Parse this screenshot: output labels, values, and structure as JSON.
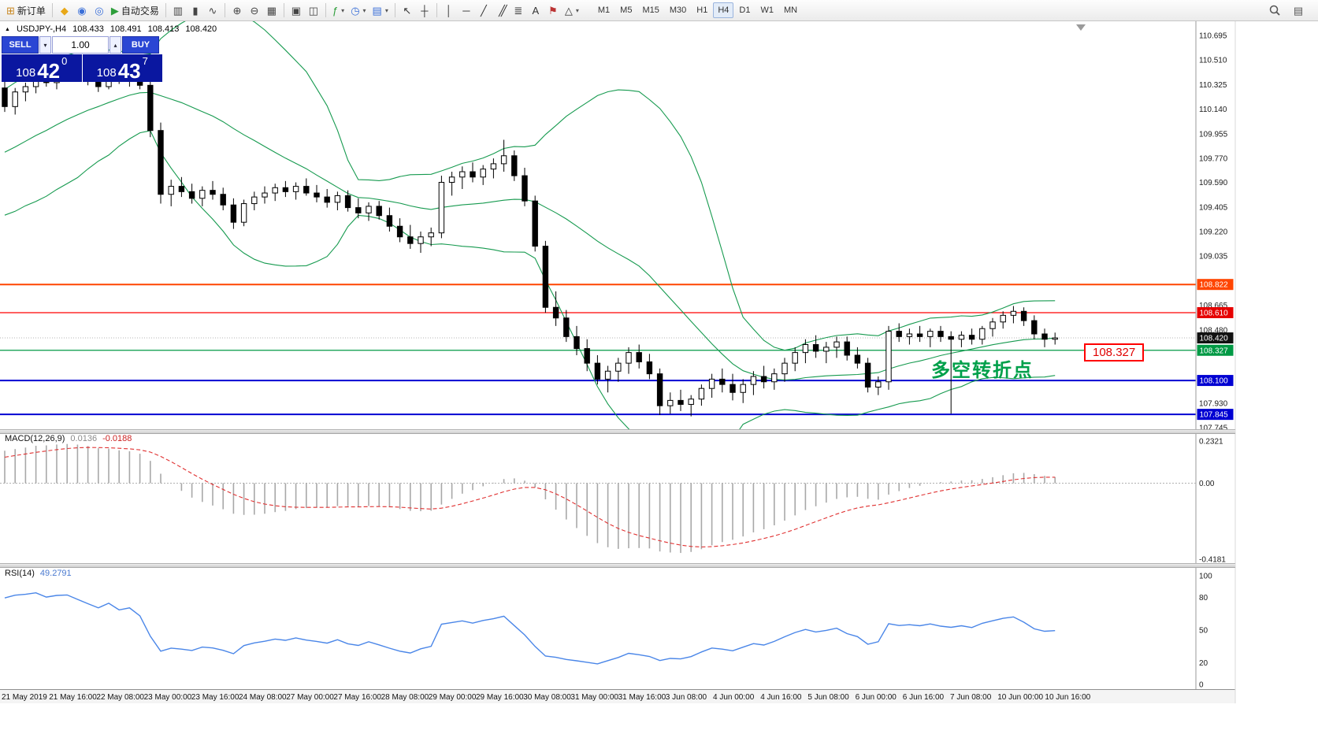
{
  "toolbar": {
    "items": [
      {
        "name": "new-order-button",
        "glyph": "⊞",
        "color": "#c8861e",
        "label": "新订单"
      },
      {
        "sep": true
      },
      {
        "name": "favorites-icon",
        "glyph": "◆",
        "color": "#e8a818"
      },
      {
        "name": "profile-icon",
        "glyph": "◉",
        "color": "#3a6fd8"
      },
      {
        "name": "community-icon",
        "glyph": "◎",
        "color": "#3a6fd8"
      },
      {
        "name": "autotrading-button",
        "glyph": "▶",
        "color": "#2d9e3a",
        "label": "自动交易"
      },
      {
        "sep": true
      },
      {
        "name": "chart-bars-icon",
        "glyph": "▥",
        "color": "#444444"
      },
      {
        "name": "chart-candles-icon",
        "glyph": "▮",
        "color": "#444444"
      },
      {
        "name": "chart-line-icon",
        "glyph": "∿",
        "color": "#444444"
      },
      {
        "sep": true
      },
      {
        "name": "zoom-in-icon",
        "glyph": "⊕",
        "color": "#444444"
      },
      {
        "name": "zoom-out-icon",
        "glyph": "⊖",
        "color": "#444444"
      },
      {
        "name": "grid-icon",
        "glyph": "▦",
        "color": "#444444"
      },
      {
        "sep": true
      },
      {
        "name": "new-chart-icon",
        "glyph": "▣",
        "color": "#444444"
      },
      {
        "name": "tile-windows-icon",
        "glyph": "◫",
        "color": "#444444"
      },
      {
        "sep": true
      },
      {
        "name": "indicators-button",
        "glyph": "ƒ",
        "color": "#2d9e3a",
        "caret": true
      },
      {
        "name": "periods-button",
        "glyph": "◷",
        "color": "#3a6fd8",
        "caret": true
      },
      {
        "name": "templates-button",
        "glyph": "▤",
        "color": "#3a6fd8",
        "caret": true
      },
      {
        "sep": true
      },
      {
        "name": "cursor-icon",
        "glyph": "↖",
        "color": "#333333"
      },
      {
        "name": "crosshair-icon",
        "glyph": "┼",
        "color": "#333333"
      },
      {
        "sep": true
      },
      {
        "name": "vertical-line-icon",
        "glyph": "│",
        "color": "#333333"
      },
      {
        "name": "horizontal-line-icon",
        "glyph": "─",
        "color": "#333333"
      },
      {
        "name": "trendline-icon",
        "glyph": "╱",
        "color": "#333333"
      },
      {
        "name": "channel-icon",
        "glyph": "╱╱",
        "color": "#333333",
        "tight": true
      },
      {
        "name": "fibonacci-icon",
        "glyph": "≣",
        "color": "#333333"
      },
      {
        "name": "text-icon",
        "glyph": "A",
        "color": "#333333"
      },
      {
        "name": "arrow-label-icon",
        "glyph": "⚑",
        "color": "#bb3333"
      },
      {
        "name": "shapes-button",
        "glyph": "△",
        "color": "#333333",
        "caret": true
      }
    ],
    "timeframes": [
      "M1",
      "M5",
      "M15",
      "M30",
      "H1",
      "H4",
      "D1",
      "W1",
      "MN"
    ],
    "active_timeframe": "H4",
    "right_items": [
      {
        "name": "search-icon",
        "type": "search"
      },
      {
        "name": "data-window-icon",
        "glyph": "▤",
        "color": "#555555"
      }
    ]
  },
  "trade_panel": {
    "sell_label": "SELL",
    "buy_label": "BUY",
    "volume": "1.00",
    "vol_down_glyph": "▾",
    "vol_up_glyph": "▴",
    "sell_price": {
      "big": "108",
      "pips": "42",
      "pt": "0"
    },
    "buy_price": {
      "big": "108",
      "pips": "43",
      "pt": "7"
    }
  },
  "chart_header": {
    "marker": "▲",
    "symbol_period": "USDJPY-,H4",
    "open": "108.433",
    "high": "108.491",
    "low": "108.413",
    "close": "108.420"
  },
  "indicators": {
    "macd": {
      "label": "MACD(12,26,9)",
      "value_main": "0.0136",
      "value_signal": "-0.0188",
      "axis": [
        "0.2321",
        "0.00",
        "-0.4181"
      ]
    },
    "rsi": {
      "label": "RSI(14)",
      "value": "49.2791",
      "axis": [
        "100",
        "80",
        "50",
        "20",
        "0"
      ]
    }
  },
  "annotations": {
    "turning_point": "多空转折点",
    "price_note": "108.327"
  },
  "price_axis": {
    "ticks": [
      "110.695",
      "110.510",
      "110.325",
      "110.140",
      "109.955",
      "109.770",
      "109.590",
      "109.405",
      "109.220",
      "109.035",
      "108.665",
      "108.480",
      "107.930",
      "107.745"
    ]
  },
  "levels": [
    {
      "label": "108.822",
      "price": 108.822,
      "line": "#ff4500",
      "badge": "#ff4500",
      "w": 2,
      "dash": ""
    },
    {
      "label": "108.610",
      "price": 108.61,
      "line": "#ff0000",
      "badge": "#e60000",
      "w": 1.3,
      "dash": ""
    },
    {
      "label": "108.420",
      "price": 108.42,
      "line": "#b4b4b4",
      "badge": "#111111",
      "w": 1,
      "dash": "1 2"
    },
    {
      "label": "108.327",
      "price": 108.327,
      "line": "#009944",
      "badge": "#009944",
      "w": 1.3,
      "dash": ""
    },
    {
      "label": "108.100",
      "price": 108.1,
      "line": "#0000d2",
      "badge": "#0000d2",
      "w": 2,
      "dash": ""
    },
    {
      "label": "107.845",
      "price": 107.845,
      "line": "#0000d2",
      "badge": "#0000d2",
      "w": 2,
      "dash": ""
    }
  ],
  "time_axis": [
    "21 May 2019",
    "21 May 16:00",
    "22 May 08:00",
    "23 May 00:00",
    "23 May 16:00",
    "24 May 08:00",
    "27 May 00:00",
    "27 May 16:00",
    "28 May 08:00",
    "29 May 00:00",
    "29 May 16:00",
    "30 May 08:00",
    "31 May 00:00",
    "31 May 16:00",
    "3 Jun 08:00",
    "4 Jun 00:00",
    "4 Jun 16:00",
    "5 Jun 08:00",
    "6 Jun 00:00",
    "6 Jun 16:00",
    "7 Jun 08:00",
    "10 Jun 00:00",
    "10 Jun 16:00"
  ],
  "colors": {
    "bollinger": "#169a4f",
    "candle_up_fill": "#ffffff",
    "candle_down_fill": "#000000",
    "candle_stroke": "#000000",
    "macd_hist": "#a8a8a8",
    "macd_signal": "#e03030",
    "rsi_line": "#4a86e8",
    "axis_text": "#1a1a1a"
  },
  "chart_data": {
    "type": "candlestick",
    "symbol": "USDJPY-",
    "period": "H4",
    "current_price": 108.42,
    "ylim": [
      107.745,
      110.695
    ],
    "macd_ylim": [
      -0.4181,
      0.2321
    ],
    "rsi_ylim": [
      0,
      100
    ],
    "overlays": {
      "bollinger_period": 20,
      "bollinger_deviation": 2,
      "macd": [
        12,
        26,
        9
      ],
      "rsi_period": 14
    },
    "pre_closes": [
      109.42,
      109.47,
      109.45,
      109.52,
      109.58,
      109.55,
      109.63,
      109.7,
      109.67,
      109.75,
      109.82,
      109.79,
      109.88,
      109.95,
      109.92,
      110.0,
      110.08,
      110.05,
      110.14,
      110.22
    ],
    "candles": [
      [
        110.3,
        110.38,
        110.12,
        110.16
      ],
      [
        110.16,
        110.3,
        110.1,
        110.27
      ],
      [
        110.27,
        110.34,
        110.2,
        110.31
      ],
      [
        110.31,
        110.41,
        110.26,
        110.38
      ],
      [
        110.38,
        110.44,
        110.31,
        110.34
      ],
      [
        110.34,
        110.43,
        110.29,
        110.41
      ],
      [
        110.41,
        110.46,
        110.35,
        110.43
      ],
      [
        110.43,
        110.47,
        110.37,
        110.39
      ],
      [
        110.39,
        110.45,
        110.32,
        110.35
      ],
      [
        110.35,
        110.41,
        110.27,
        110.31
      ],
      [
        110.31,
        110.47,
        110.29,
        110.43
      ],
      [
        110.43,
        110.46,
        110.33,
        110.36
      ],
      [
        110.36,
        110.44,
        110.31,
        110.41
      ],
      [
        110.41,
        110.43,
        110.29,
        110.32
      ],
      [
        110.32,
        110.36,
        109.93,
        109.98
      ],
      [
        109.98,
        110.04,
        109.43,
        109.5
      ],
      [
        109.5,
        109.61,
        109.41,
        109.56
      ],
      [
        109.56,
        109.63,
        109.48,
        109.52
      ],
      [
        109.52,
        109.58,
        109.43,
        109.47
      ],
      [
        109.47,
        109.56,
        109.41,
        109.53
      ],
      [
        109.53,
        109.6,
        109.46,
        109.5
      ],
      [
        109.5,
        109.55,
        109.38,
        109.42
      ],
      [
        109.42,
        109.47,
        109.24,
        109.29
      ],
      [
        109.29,
        109.46,
        109.26,
        109.43
      ],
      [
        109.43,
        109.52,
        109.38,
        109.48
      ],
      [
        109.48,
        109.56,
        109.43,
        109.51
      ],
      [
        109.51,
        109.58,
        109.45,
        109.55
      ],
      [
        109.55,
        109.6,
        109.48,
        109.52
      ],
      [
        109.52,
        109.59,
        109.46,
        109.56
      ],
      [
        109.56,
        109.62,
        109.49,
        109.51
      ],
      [
        109.51,
        109.57,
        109.44,
        109.48
      ],
      [
        109.48,
        109.54,
        109.4,
        109.44
      ],
      [
        109.44,
        109.52,
        109.38,
        109.49
      ],
      [
        109.49,
        109.53,
        109.37,
        109.4
      ],
      [
        109.4,
        109.47,
        109.32,
        109.36
      ],
      [
        109.36,
        109.44,
        109.3,
        109.41
      ],
      [
        109.41,
        109.45,
        109.31,
        109.34
      ],
      [
        109.34,
        109.4,
        109.22,
        109.26
      ],
      [
        109.26,
        109.32,
        109.14,
        109.18
      ],
      [
        109.18,
        109.27,
        109.09,
        109.13
      ],
      [
        109.13,
        109.22,
        109.06,
        109.18
      ],
      [
        109.18,
        109.25,
        109.11,
        109.21
      ],
      [
        109.21,
        109.64,
        109.17,
        109.59
      ],
      [
        109.59,
        109.67,
        109.49,
        109.63
      ],
      [
        109.63,
        109.71,
        109.54,
        109.67
      ],
      [
        109.67,
        109.74,
        109.59,
        109.63
      ],
      [
        109.63,
        109.72,
        109.57,
        109.69
      ],
      [
        109.69,
        109.77,
        109.62,
        109.73
      ],
      [
        109.73,
        109.91,
        109.67,
        109.79
      ],
      [
        109.79,
        109.83,
        109.6,
        109.64
      ],
      [
        109.64,
        109.7,
        109.41,
        109.45
      ],
      [
        109.45,
        109.49,
        109.07,
        109.11
      ],
      [
        109.11,
        109.15,
        108.61,
        108.65
      ],
      [
        108.65,
        108.77,
        108.51,
        108.57
      ],
      [
        108.57,
        108.63,
        108.39,
        108.43
      ],
      [
        108.43,
        108.51,
        108.29,
        108.34
      ],
      [
        108.34,
        108.41,
        108.17,
        108.23
      ],
      [
        108.23,
        108.29,
        108.07,
        108.11
      ],
      [
        108.11,
        108.21,
        108.01,
        108.17
      ],
      [
        108.17,
        108.27,
        108.09,
        108.23
      ],
      [
        108.23,
        108.35,
        108.15,
        108.31
      ],
      [
        108.31,
        108.37,
        108.19,
        108.24
      ],
      [
        108.24,
        108.3,
        108.11,
        108.15
      ],
      [
        108.15,
        108.19,
        107.84,
        107.91
      ],
      [
        107.91,
        108.01,
        107.85,
        107.95
      ],
      [
        107.95,
        108.03,
        107.87,
        107.92
      ],
      [
        107.92,
        107.99,
        107.83,
        107.96
      ],
      [
        107.96,
        108.07,
        107.91,
        108.04
      ],
      [
        108.04,
        108.15,
        107.97,
        108.11
      ],
      [
        108.11,
        108.19,
        108.01,
        108.07
      ],
      [
        108.07,
        108.15,
        107.95,
        108.01
      ],
      [
        108.01,
        108.11,
        107.93,
        108.07
      ],
      [
        108.07,
        108.17,
        107.99,
        108.13
      ],
      [
        108.13,
        108.21,
        108.04,
        108.09
      ],
      [
        108.09,
        108.19,
        108.03,
        108.15
      ],
      [
        108.15,
        108.27,
        108.09,
        108.23
      ],
      [
        108.23,
        108.35,
        108.17,
        108.31
      ],
      [
        108.31,
        108.41,
        108.23,
        108.37
      ],
      [
        108.37,
        108.44,
        108.27,
        108.32
      ],
      [
        108.32,
        108.39,
        108.23,
        108.35
      ],
      [
        108.35,
        108.43,
        108.27,
        108.39
      ],
      [
        108.39,
        108.43,
        108.25,
        108.29
      ],
      [
        108.29,
        108.35,
        108.19,
        108.23
      ],
      [
        108.23,
        108.27,
        108.01,
        108.05
      ],
      [
        108.05,
        108.13,
        107.99,
        108.09
      ],
      [
        108.09,
        108.51,
        108.03,
        108.47
      ],
      [
        108.47,
        108.53,
        108.39,
        108.43
      ],
      [
        108.43,
        108.49,
        108.37,
        108.45
      ],
      [
        108.45,
        108.51,
        108.39,
        108.43
      ],
      [
        108.43,
        108.49,
        108.35,
        108.47
      ],
      [
        108.47,
        108.51,
        108.39,
        108.43
      ],
      [
        108.43,
        108.47,
        107.85,
        108.41
      ],
      [
        108.41,
        108.47,
        108.35,
        108.44
      ],
      [
        108.44,
        108.49,
        108.37,
        108.41
      ],
      [
        108.41,
        108.51,
        108.37,
        108.49
      ],
      [
        108.49,
        108.57,
        108.43,
        108.54
      ],
      [
        108.54,
        108.62,
        108.49,
        108.59
      ],
      [
        108.59,
        108.66,
        108.53,
        108.62
      ],
      [
        108.62,
        108.65,
        108.51,
        108.55
      ],
      [
        108.55,
        108.59,
        108.41,
        108.45
      ],
      [
        108.45,
        108.49,
        108.35,
        108.41
      ],
      [
        108.41,
        108.46,
        108.37,
        108.42
      ]
    ]
  }
}
